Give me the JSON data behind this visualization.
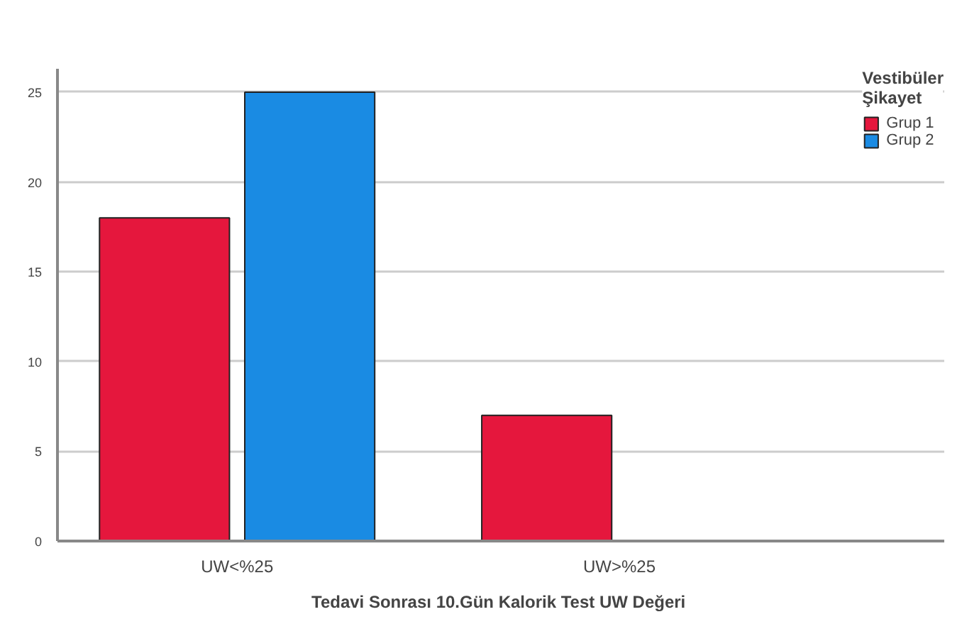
{
  "chart_data": {
    "type": "bar",
    "xlabel": "Tedavi Sonrası  10.Gün Kalorik Test UW Değeri",
    "legend_title": "Vestibüler Şikayet",
    "categories": [
      "UW<%25",
      "UW>%25"
    ],
    "series": [
      {
        "name": "Grup 1",
        "color": "#e5173d",
        "values": [
          18,
          7
        ]
      },
      {
        "name": "Grup 2",
        "color": "#1a8be3",
        "values": [
          25,
          null
        ]
      }
    ],
    "ylim": [
      0,
      26.3
    ],
    "yticks": [
      0,
      5,
      10,
      15,
      20,
      25
    ],
    "grid": "y",
    "legend": "top right"
  }
}
